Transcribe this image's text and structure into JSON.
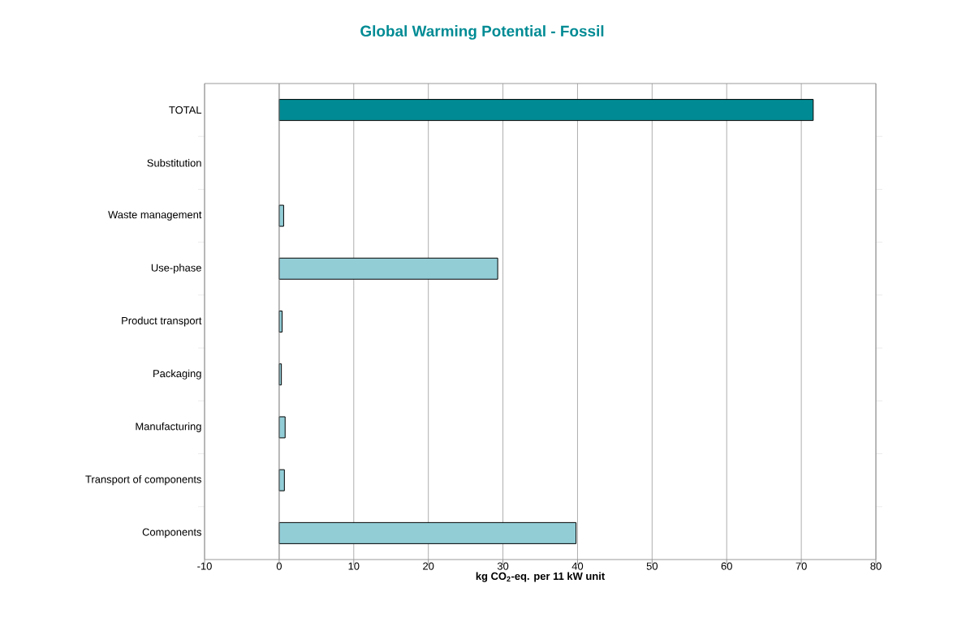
{
  "chart_data": {
    "type": "bar",
    "orientation": "horizontal",
    "title": "Global Warming Potential - Fossil",
    "xlabel": "kg CO$_{2}$-eq. per 11 kW unit",
    "categories": [
      "TOTAL",
      "Substitution",
      "Waste management",
      "Use-phase",
      "Product transport",
      "Packaging",
      "Manufacturing",
      "Transport of components",
      "Components"
    ],
    "values": [
      71.6,
      null,
      0.6,
      29.3,
      0.4,
      0.3,
      0.8,
      0.7,
      39.8
    ],
    "colors": [
      "#008b94",
      "#92cdd6",
      "#92cdd6",
      "#92cdd6",
      "#92cdd6",
      "#92cdd6",
      "#92cdd6",
      "#92cdd6",
      "#92cdd6"
    ],
    "xlim": [
      -10,
      80
    ],
    "xticks": [
      -10,
      0,
      10,
      20,
      30,
      40,
      50,
      60,
      70,
      80
    ],
    "grid": "x"
  }
}
